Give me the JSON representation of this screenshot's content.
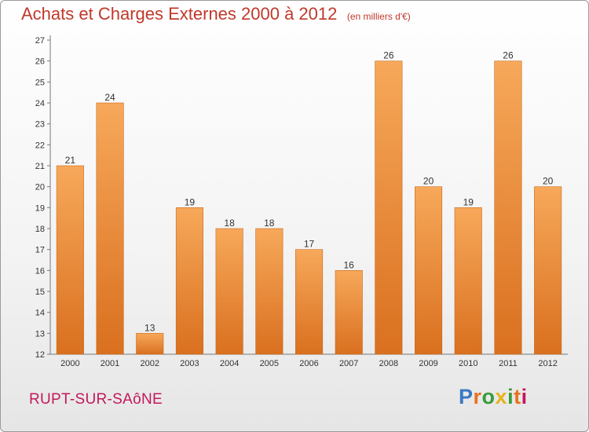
{
  "page": {
    "title": "Achats et Charges Externes 2000 à 2012",
    "subtitle": "(en milliers d'€)",
    "city": "RUPT-SUR-SAôNE",
    "logo": {
      "text": "Proxiti",
      "letter_colors": [
        "#3a78c3",
        "#e8721c",
        "#3a9a3a",
        "#e8b21c",
        "#3a9a3a",
        "#e8721c",
        "#c2185b"
      ]
    }
  },
  "chart_data": {
    "type": "bar",
    "title": "Achats et Charges Externes 2000 à 2012",
    "subtitle": "(en milliers d'€)",
    "xlabel": "",
    "ylabel": "",
    "categories": [
      "2000",
      "2001",
      "2002",
      "2003",
      "2004",
      "2005",
      "2006",
      "2007",
      "2008",
      "2009",
      "2010",
      "2011",
      "2012"
    ],
    "values": [
      21,
      24,
      13,
      19,
      18,
      18,
      17,
      16,
      26,
      20,
      19,
      26,
      20
    ],
    "ylim": [
      12,
      27
    ],
    "yticks": [
      12,
      13,
      14,
      15,
      16,
      17,
      18,
      19,
      20,
      21,
      22,
      23,
      24,
      25,
      26,
      27
    ],
    "grid": false,
    "data_labels": true,
    "colors": {
      "bar_light": "#f7a85a",
      "bar_dark": "#d9701f",
      "bar_edge": "#c96a1e"
    }
  }
}
